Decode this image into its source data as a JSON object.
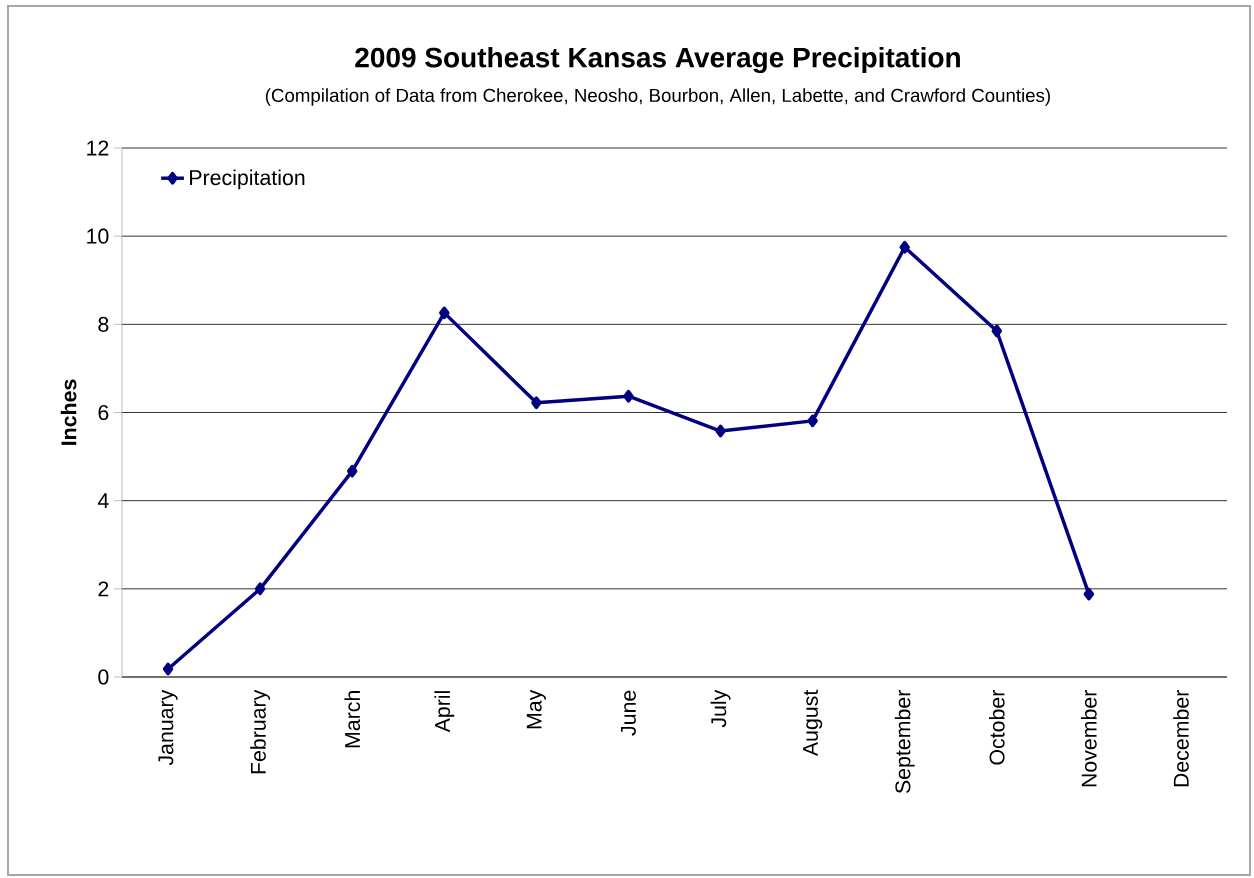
{
  "chart_data": {
    "type": "line",
    "title": "2009 Southeast Kansas Average Precipitation",
    "subtitle": "(Compilation of Data from Cherokee, Neosho, Bourbon, Allen, Labette, and Crawford Counties)",
    "ylabel": "Inches",
    "categories": [
      "January",
      "February",
      "March",
      "April",
      "May",
      "June",
      "July",
      "August",
      "September",
      "October",
      "November",
      "December"
    ],
    "series": [
      {
        "name": "Precipitation",
        "color": "#000080",
        "values": [
          0.18,
          2.0,
          4.67,
          8.26,
          6.22,
          6.37,
          5.58,
          5.81,
          9.75,
          7.85,
          1.88,
          null
        ]
      }
    ],
    "ylim": [
      0,
      12
    ],
    "yticks": [
      0,
      2,
      4,
      6,
      8,
      10,
      12
    ],
    "grid": "y",
    "legend": "top left",
    "marker": "diamond",
    "line_style": "solid"
  }
}
